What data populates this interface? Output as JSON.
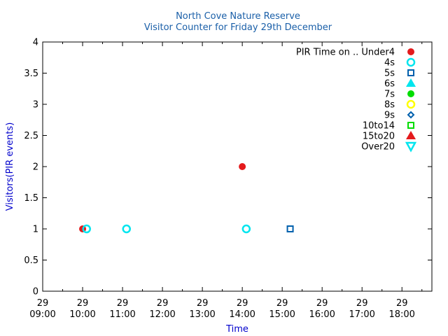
{
  "chart_data": {
    "type": "scatter",
    "title": "North Cove Nature Reserve",
    "subtitle": "Visitor Counter for Friday 29th December",
    "xlabel": "Time",
    "ylabel": "Visitors(PIR events)",
    "xlim": [
      "09:00",
      "18:45"
    ],
    "ylim": [
      0,
      4
    ],
    "x_ticks": [
      {
        "day": "29",
        "time": "09:00"
      },
      {
        "day": "29",
        "time": "10:00"
      },
      {
        "day": "29",
        "time": "11:00"
      },
      {
        "day": "29",
        "time": "12:00"
      },
      {
        "day": "29",
        "time": "13:00"
      },
      {
        "day": "29",
        "time": "14:00"
      },
      {
        "day": "29",
        "time": "15:00"
      },
      {
        "day": "29",
        "time": "16:00"
      },
      {
        "day": "29",
        "time": "17:00"
      },
      {
        "day": "29",
        "time": "18:00"
      }
    ],
    "y_ticks": [
      "0",
      "0.5",
      "1",
      "1.5",
      "2",
      "2.5",
      "3",
      "3.5",
      "4"
    ],
    "y_tick_values": [
      0,
      0.5,
      1,
      1.5,
      2,
      2.5,
      3,
      3.5,
      4
    ],
    "grid": false,
    "legend_position": "top-right",
    "legend_title": "PIR Time on ..",
    "series": [
      {
        "name": "Under4",
        "marker": "filled-circle",
        "color": "#e41a1c",
        "points": [
          {
            "x": "10:00",
            "y": 1
          },
          {
            "x": "14:00",
            "y": 2
          }
        ]
      },
      {
        "name": "4s",
        "marker": "open-circle",
        "color": "#00e5ee",
        "points": [
          {
            "x": "10:06",
            "y": 1
          },
          {
            "x": "11:06",
            "y": 1
          },
          {
            "x": "14:06",
            "y": 1
          }
        ]
      },
      {
        "name": "5s",
        "marker": "open-square",
        "color": "#0060ad",
        "points": [
          {
            "x": "15:12",
            "y": 1
          }
        ]
      },
      {
        "name": "6s",
        "marker": "filled-triangle",
        "color": "#00e5ee",
        "points": []
      },
      {
        "name": "7s",
        "marker": "filled-circle",
        "color": "#00dd00",
        "points": []
      },
      {
        "name": "8s",
        "marker": "open-circle",
        "color": "#ffff00",
        "points": []
      },
      {
        "name": "9s",
        "marker": "open-diamond",
        "color": "#0060ad",
        "points": []
      },
      {
        "name": "10to14",
        "marker": "open-square",
        "color": "#00dd00",
        "points": []
      },
      {
        "name": "15to20",
        "marker": "filled-triangle",
        "color": "#e41a1c",
        "points": []
      },
      {
        "name": "Over20",
        "marker": "open-triangle-down",
        "color": "#00e5ee",
        "points": []
      }
    ]
  }
}
